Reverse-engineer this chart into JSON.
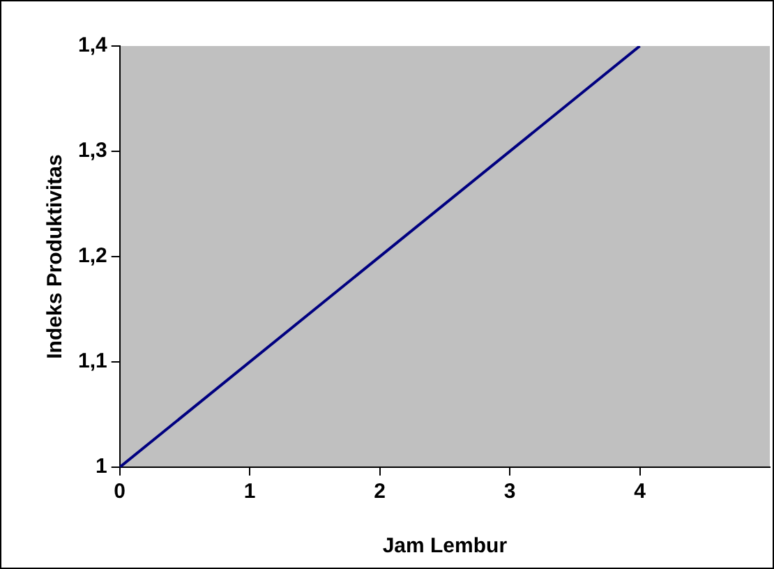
{
  "chart_data": {
    "type": "line",
    "xlabel": "Jam Lembur",
    "ylabel": "Indeks Produktivitas",
    "x": [
      0,
      4
    ],
    "series": [
      {
        "color": "#000080",
        "values": [
          1,
          1.4
        ]
      }
    ],
    "xlim": [
      0,
      5
    ],
    "xticks": [
      0,
      1,
      2,
      3,
      4
    ],
    "ylim": [
      1,
      1.4
    ],
    "yticks": [
      {
        "value": 1,
        "label": "1"
      },
      {
        "value": 1.1,
        "label": "1,1"
      },
      {
        "value": 1.2,
        "label": "1,2"
      },
      {
        "value": 1.3,
        "label": "1,3"
      },
      {
        "value": 1.4,
        "label": "1,4"
      }
    ],
    "grid": false,
    "legend": false,
    "marker": "none",
    "line_style": "solid"
  }
}
